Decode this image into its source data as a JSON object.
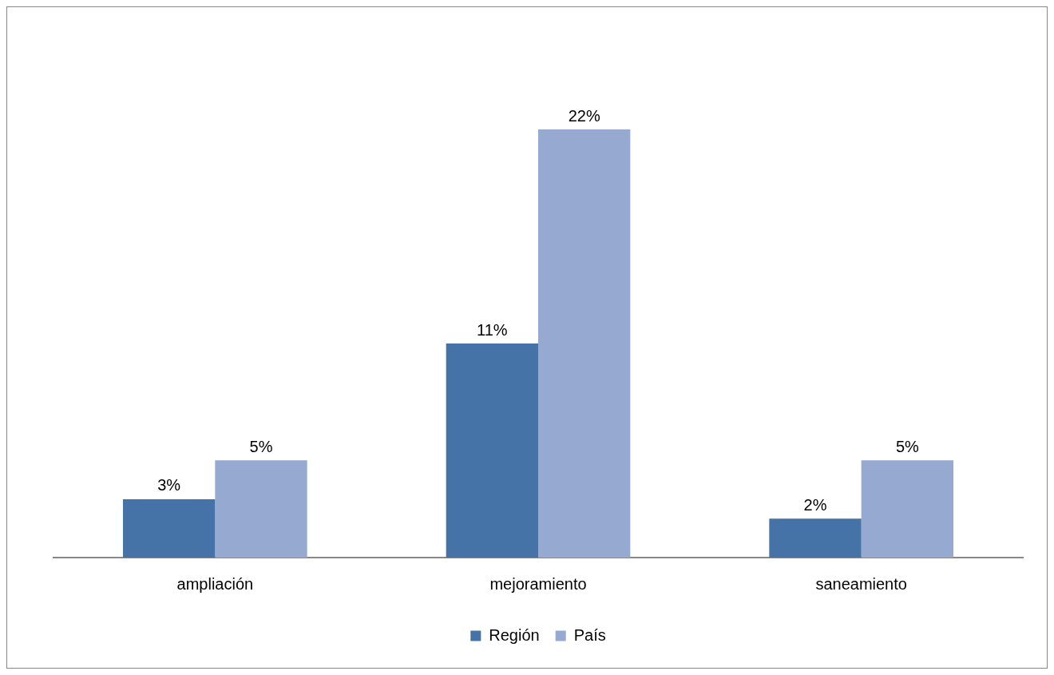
{
  "chart_data": {
    "type": "bar",
    "categories": [
      "ampliación",
      "mejoramiento",
      "saneamiento"
    ],
    "series": [
      {
        "name": "Región",
        "color": "#4572a7",
        "values": [
          3,
          11,
          2
        ],
        "value_labels": [
          "3%",
          "11%",
          "2%"
        ]
      },
      {
        "name": "País",
        "color": "#95a9d1",
        "values": [
          5,
          22,
          5
        ],
        "value_labels": [
          "5%",
          "22%",
          "5%"
        ]
      }
    ],
    "grid": false,
    "legend": "bottom"
  }
}
